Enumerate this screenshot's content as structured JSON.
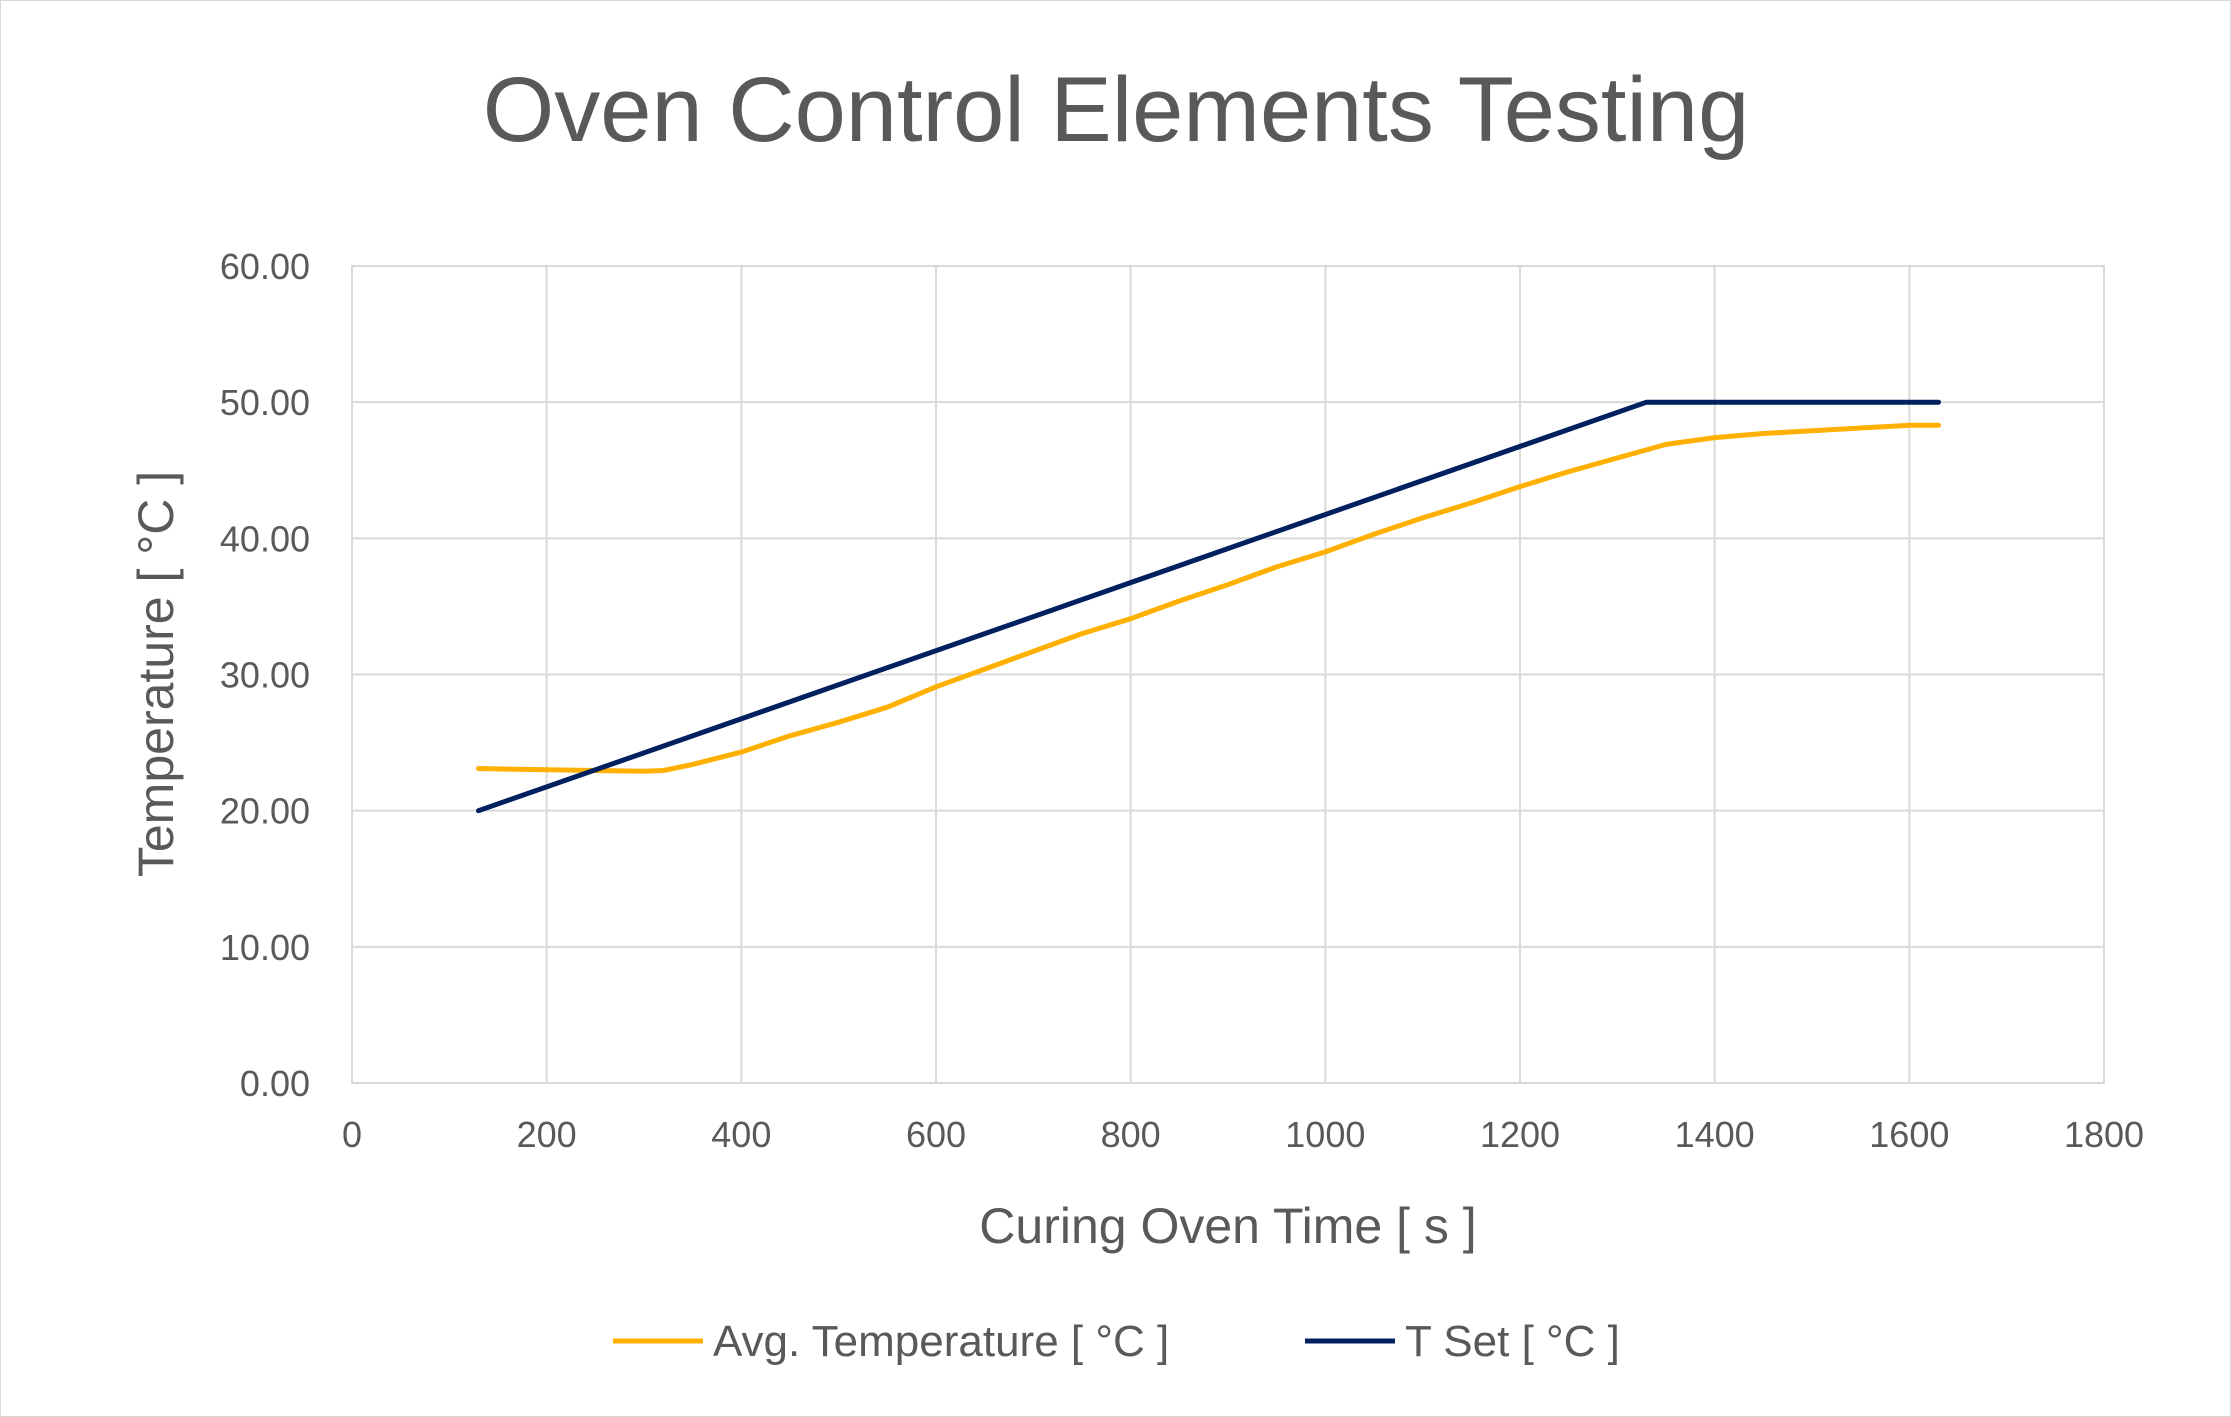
{
  "chart_data": {
    "type": "line",
    "title": "Oven Control Elements Testing",
    "xlabel": "Curing Oven Time [ s ]",
    "ylabel": "Temperature [ °C ]",
    "xlim": [
      0,
      1800
    ],
    "ylim": [
      0,
      60
    ],
    "x_ticks": [
      0,
      200,
      400,
      600,
      800,
      1000,
      1200,
      1400,
      1600,
      1800
    ],
    "y_ticks": [
      0,
      10,
      20,
      30,
      40,
      50,
      60
    ],
    "x_tick_labels": [
      "0",
      "200",
      "400",
      "600",
      "800",
      "1000",
      "1200",
      "1400",
      "1600",
      "1800"
    ],
    "y_tick_labels": [
      "0.00",
      "10.00",
      "20.00",
      "30.00",
      "40.00",
      "50.00",
      "60.00"
    ],
    "grid": true,
    "legend_position": "bottom",
    "series": [
      {
        "name": "Avg. Temperature [ °C ]",
        "color": "#FFB000",
        "x": [
          130,
          160,
          200,
          250,
          300,
          320,
          350,
          400,
          450,
          500,
          550,
          600,
          650,
          700,
          750,
          800,
          850,
          900,
          950,
          1000,
          1050,
          1100,
          1150,
          1200,
          1250,
          1300,
          1350,
          1400,
          1450,
          1500,
          1550,
          1600,
          1630
        ],
        "y": [
          23.1,
          23.05,
          23.0,
          22.95,
          22.9,
          22.95,
          23.4,
          24.3,
          25.5,
          26.5,
          27.6,
          29.1,
          30.4,
          31.7,
          33.0,
          34.1,
          35.4,
          36.6,
          37.9,
          39.0,
          40.3,
          41.5,
          42.6,
          43.8,
          44.9,
          45.9,
          46.9,
          47.4,
          47.7,
          47.9,
          48.1,
          48.3,
          48.3
        ]
      },
      {
        "name": "T Set [ °C ]",
        "color": "#002060",
        "x": [
          130,
          1330,
          1630
        ],
        "y": [
          20,
          50,
          50
        ]
      }
    ]
  }
}
